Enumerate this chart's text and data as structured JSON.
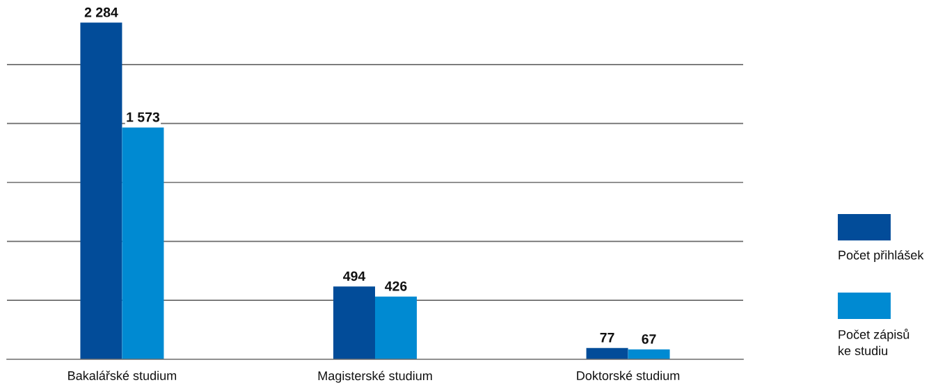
{
  "chart_data": {
    "type": "bar",
    "categories": [
      "Bakalářské studium",
      "Magisterské studium",
      "Doktorské studium"
    ],
    "series": [
      {
        "name": "Počet přihlášek",
        "color": "#024c99",
        "values": [
          2284,
          494,
          77
        ],
        "value_labels": [
          "2 284",
          "494",
          "77"
        ]
      },
      {
        "name": "Počet zápisů\nke studiu",
        "color": "#008ad2",
        "values": [
          1573,
          426,
          67
        ],
        "value_labels": [
          "1 573",
          "426",
          "67"
        ]
      }
    ],
    "yticks": [
      {
        "value": 400,
        "label": null
      },
      {
        "value": 800,
        "label": null
      },
      {
        "value": 1200,
        "label": null
      },
      {
        "value": 1600,
        "label": null
      },
      {
        "value": 2000,
        "label": null
      }
    ],
    "tick_labels": "x",
    "grid": "y",
    "legend": "right"
  }
}
